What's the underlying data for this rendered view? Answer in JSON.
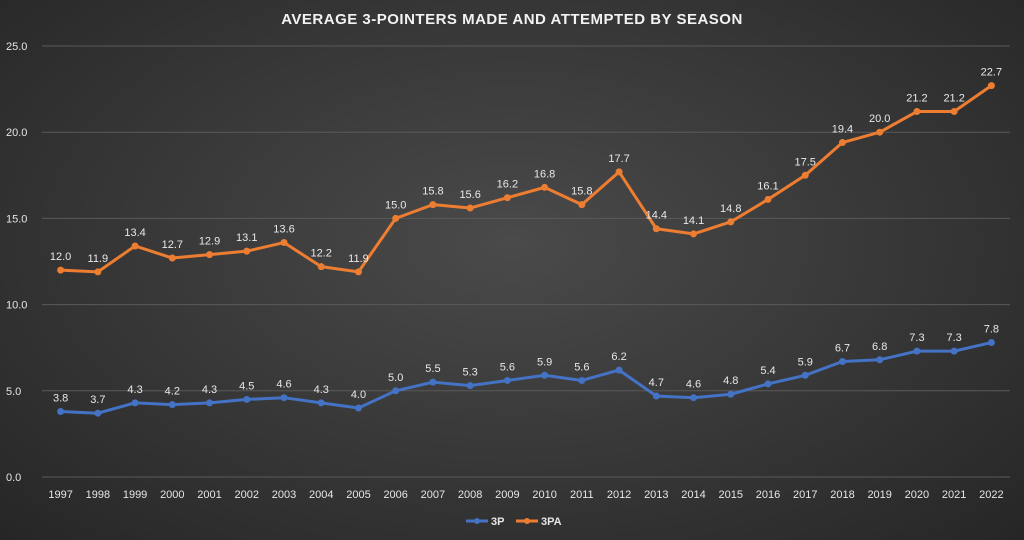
{
  "chart_data": {
    "type": "line",
    "title": "AVERAGE 3-POINTERS MADE AND ATTEMPTED BY SEASON",
    "xlabel": "",
    "ylabel": "",
    "categories": [
      "1997",
      "1998",
      "1999",
      "2000",
      "2001",
      "2002",
      "2003",
      "2004",
      "2005",
      "2006",
      "2007",
      "2008",
      "2009",
      "2010",
      "2011",
      "2012",
      "2013",
      "2014",
      "2015",
      "2016",
      "2017",
      "2018",
      "2019",
      "2020",
      "2021",
      "2022"
    ],
    "ylim": [
      0,
      25
    ],
    "yticks": [
      "0.0",
      "5.0",
      "10.0",
      "15.0",
      "20.0",
      "25.0"
    ],
    "grid": true,
    "legend_position": "bottom",
    "series": [
      {
        "name": "3P",
        "color": "#4472c4",
        "values": [
          3.8,
          3.7,
          4.3,
          4.2,
          4.3,
          4.5,
          4.6,
          4.3,
          4.0,
          5.0,
          5.5,
          5.3,
          5.6,
          5.9,
          5.6,
          6.2,
          4.7,
          4.6,
          4.8,
          5.4,
          5.9,
          6.7,
          6.8,
          7.3,
          7.3,
          7.8
        ],
        "labels": [
          "3.8",
          "3.7",
          "4.3",
          "4.2",
          "4.3",
          "4.5",
          "4.6",
          "4.3",
          "4.0",
          "5.0",
          "5.5",
          "5.3",
          "5.6",
          "5.9",
          "5.6",
          "6.2",
          "4.7",
          "4.6",
          "4.8",
          "5.4",
          "5.9",
          "6.7",
          "6.8",
          "7.3",
          "7.3",
          "7.8"
        ]
      },
      {
        "name": "3PA",
        "color": "#ed7d31",
        "values": [
          12.0,
          11.9,
          13.4,
          12.7,
          12.9,
          13.1,
          13.6,
          12.2,
          11.9,
          15.0,
          15.8,
          15.6,
          16.2,
          16.8,
          15.8,
          17.7,
          14.4,
          14.1,
          14.8,
          16.1,
          17.5,
          19.4,
          20.0,
          21.2,
          21.2,
          22.7
        ],
        "labels": [
          "12.0",
          "11.9",
          "13.4",
          "12.7",
          "12.9",
          "13.1",
          "13.6",
          "12.2",
          "11.9",
          "15.0",
          "15.8",
          "15.6",
          "16.2",
          "16.8",
          "15.8",
          "17.7",
          "14.4",
          "14.1",
          "14.8",
          "16.1",
          "17.5",
          "19.4",
          "20.0",
          "21.2",
          "21.2",
          "22.7"
        ]
      }
    ]
  }
}
